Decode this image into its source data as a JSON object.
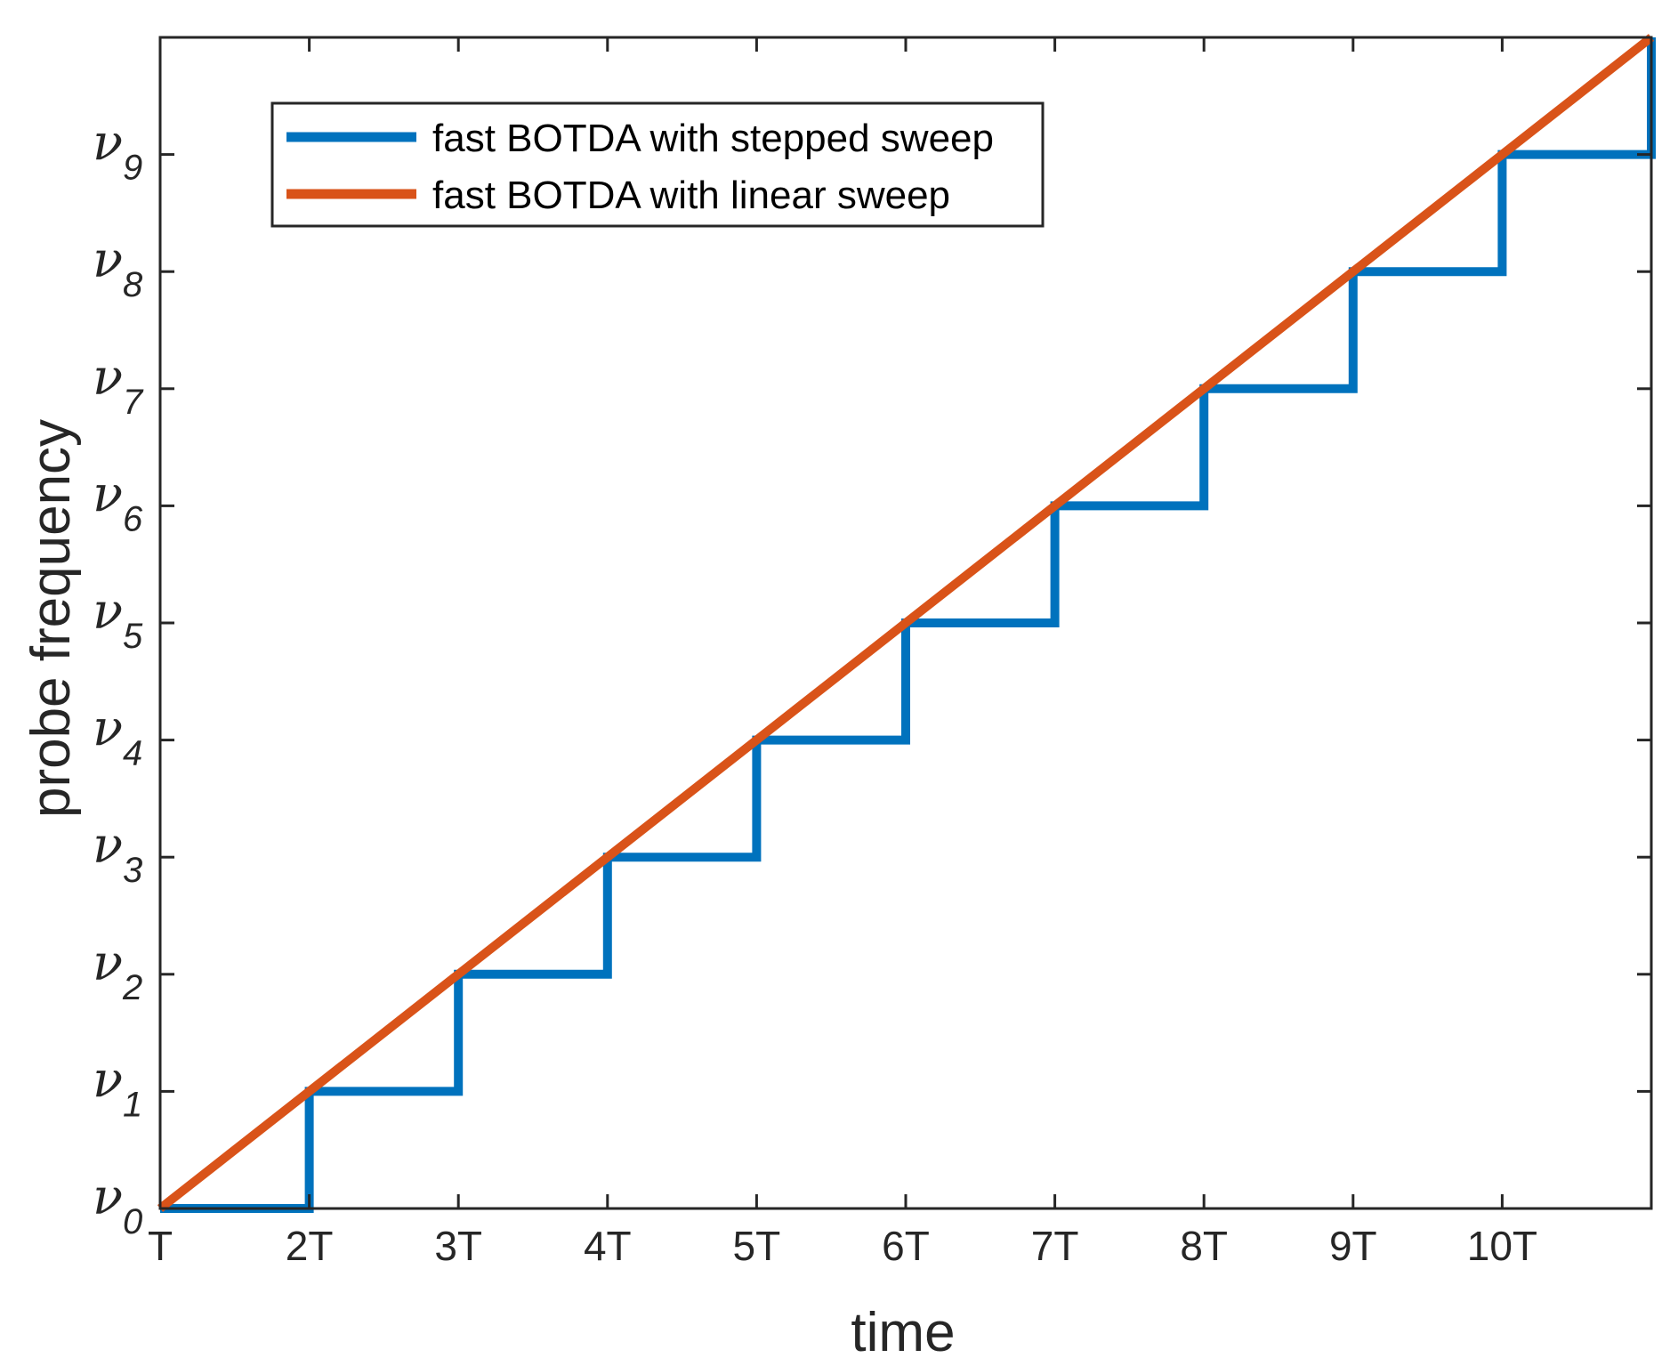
{
  "chart_data": {
    "type": "line",
    "title": "",
    "xlabel": "time",
    "ylabel": "probe frequency",
    "xlim": [
      1,
      11
    ],
    "ylim": [
      0,
      10
    ],
    "x_tick_values": [
      1,
      2,
      3,
      4,
      5,
      6,
      7,
      8,
      9,
      10,
      11
    ],
    "x_tick_labels": [
      "T",
      "2T",
      "3T",
      "4T",
      "5T",
      "6T",
      "7T",
      "8T",
      "9T",
      "10T",
      ""
    ],
    "y_ticks": [
      {
        "value": 0,
        "symbol": "ν",
        "sub": "0"
      },
      {
        "value": 1,
        "symbol": "ν",
        "sub": "1"
      },
      {
        "value": 2,
        "symbol": "ν",
        "sub": "2"
      },
      {
        "value": 3,
        "symbol": "ν",
        "sub": "3"
      },
      {
        "value": 4,
        "symbol": "ν",
        "sub": "4"
      },
      {
        "value": 5,
        "symbol": "ν",
        "sub": "5"
      },
      {
        "value": 6,
        "symbol": "ν",
        "sub": "6"
      },
      {
        "value": 7,
        "symbol": "ν",
        "sub": "7"
      },
      {
        "value": 8,
        "symbol": "ν",
        "sub": "8"
      },
      {
        "value": 9,
        "symbol": "ν",
        "sub": "9"
      }
    ],
    "grid": false,
    "legend_position": "top-left",
    "series": [
      {
        "name": "fast BOTDA with stepped sweep",
        "color": "#0072BD",
        "style": "step",
        "x": [
          1,
          2,
          2,
          3,
          3,
          4,
          4,
          5,
          5,
          6,
          6,
          7,
          7,
          8,
          8,
          9,
          9,
          10,
          10,
          11,
          11
        ],
        "y": [
          0,
          0,
          1,
          1,
          2,
          2,
          3,
          3,
          4,
          4,
          5,
          5,
          6,
          6,
          7,
          7,
          8,
          8,
          9,
          9,
          10
        ]
      },
      {
        "name": "fast BOTDA with linear sweep",
        "color": "#D95319",
        "style": "line",
        "x": [
          1,
          11
        ],
        "y": [
          0,
          10
        ]
      }
    ]
  }
}
